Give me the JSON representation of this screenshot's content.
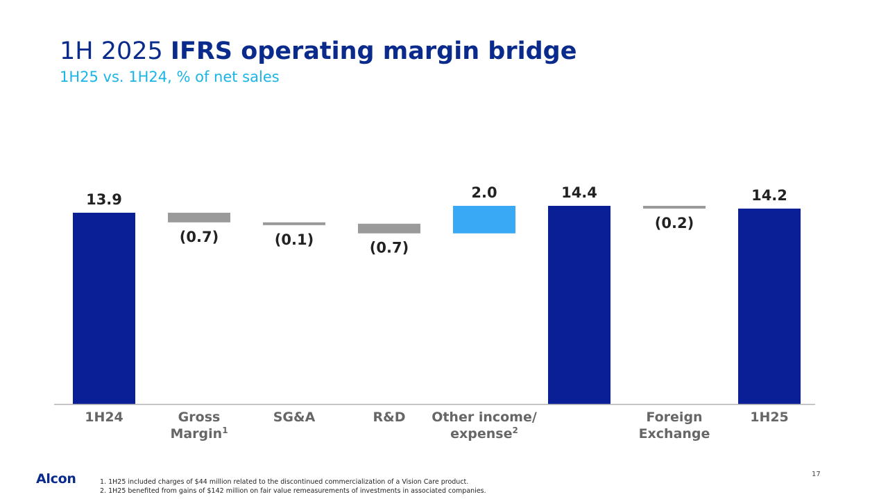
{
  "header": {
    "title_prefix": "1H 2025 ",
    "title_bold": "IFRS operating margin bridge",
    "subtitle": "1H25 vs. 1H24, % of net sales"
  },
  "chart_data": {
    "type": "bar",
    "subtype": "waterfall",
    "unit": "% of net sales",
    "categories": [
      {
        "line1": "1H24",
        "line2": "",
        "sup": ""
      },
      {
        "line1": "Gross",
        "line2": "Margin",
        "sup": "1"
      },
      {
        "line1": "SG&A",
        "line2": "",
        "sup": ""
      },
      {
        "line1": "R&D",
        "line2": "",
        "sup": ""
      },
      {
        "line1": "Other income/",
        "line2": "expense",
        "sup": "2"
      },
      {
        "line1": "",
        "line2": "",
        "sup": ""
      },
      {
        "line1": "Foreign",
        "line2": "Exchange",
        "sup": ""
      },
      {
        "line1": "1H25",
        "line2": "",
        "sup": ""
      }
    ],
    "bars": [
      {
        "kind": "total",
        "value": 13.9,
        "label": "13.9"
      },
      {
        "kind": "delta",
        "value": -0.7,
        "label": "(0.7)"
      },
      {
        "kind": "delta",
        "value": -0.1,
        "label": "(0.1)"
      },
      {
        "kind": "delta",
        "value": -0.7,
        "label": "(0.7)"
      },
      {
        "kind": "delta",
        "value": 2.0,
        "label": "2.0"
      },
      {
        "kind": "total",
        "value": 14.4,
        "label": "14.4"
      },
      {
        "kind": "delta",
        "value": -0.2,
        "label": "(0.2)"
      },
      {
        "kind": "total",
        "value": 14.2,
        "label": "14.2"
      }
    ],
    "colors": {
      "total": "#0a1f96",
      "negative": "#9a9a9a",
      "positive": "#3aa9f5",
      "axis": "#b0b0b0",
      "label": "#222222"
    },
    "ylim": [
      0,
      14.4
    ],
    "grid": false,
    "legend": "none"
  },
  "footer": {
    "logo": "Alcon",
    "footnotes": [
      "1. 1H25 included charges of $44 million related to the discontinued commercialization of a Vision Care product.",
      "2. 1H25 benefited from gains of $142 million on fair value remeasurements of investments in associated companies."
    ],
    "page_number": "17"
  }
}
